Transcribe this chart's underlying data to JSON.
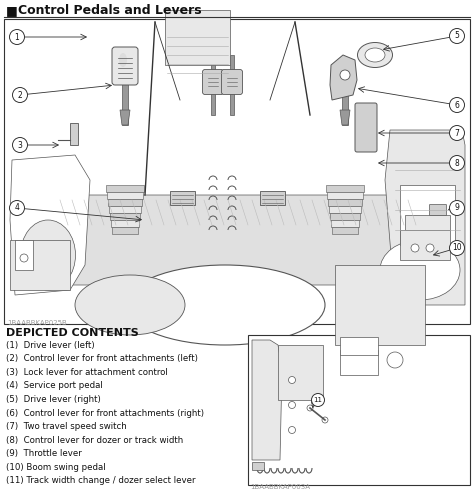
{
  "title": "Control Pedals and Levers",
  "title_marker": "■",
  "main_image_code": "1BAABBKAP025B",
  "inset_image_code": "1BAABBKAP003A",
  "depicted_contents_header": "DEPICTED CONTENTS",
  "items": [
    "(1)  Drive lever (left)",
    "(2)  Control lever for front attachments (left)",
    "(3)  Lock lever for attachment control",
    "(4)  Service port pedal",
    "(5)  Drive lever (right)",
    "(6)  Control lever for front attachments (right)",
    "(7)  Two travel speed switch",
    "(8)  Control lever for dozer or track width",
    "(9)  Throttle lever",
    "(10) Boom swing pedal",
    "(11) Track width change / dozer select lever"
  ],
  "bg_color": "#ffffff",
  "border_color": "#444444",
  "text_color": "#111111",
  "light_gray": "#c8c8c8",
  "mid_gray": "#999999",
  "dark_gray": "#555555",
  "line_color": "#333333",
  "fill_light": "#e8e8e8",
  "fill_mid": "#d0d0d0",
  "fill_dark": "#b0b0b0"
}
